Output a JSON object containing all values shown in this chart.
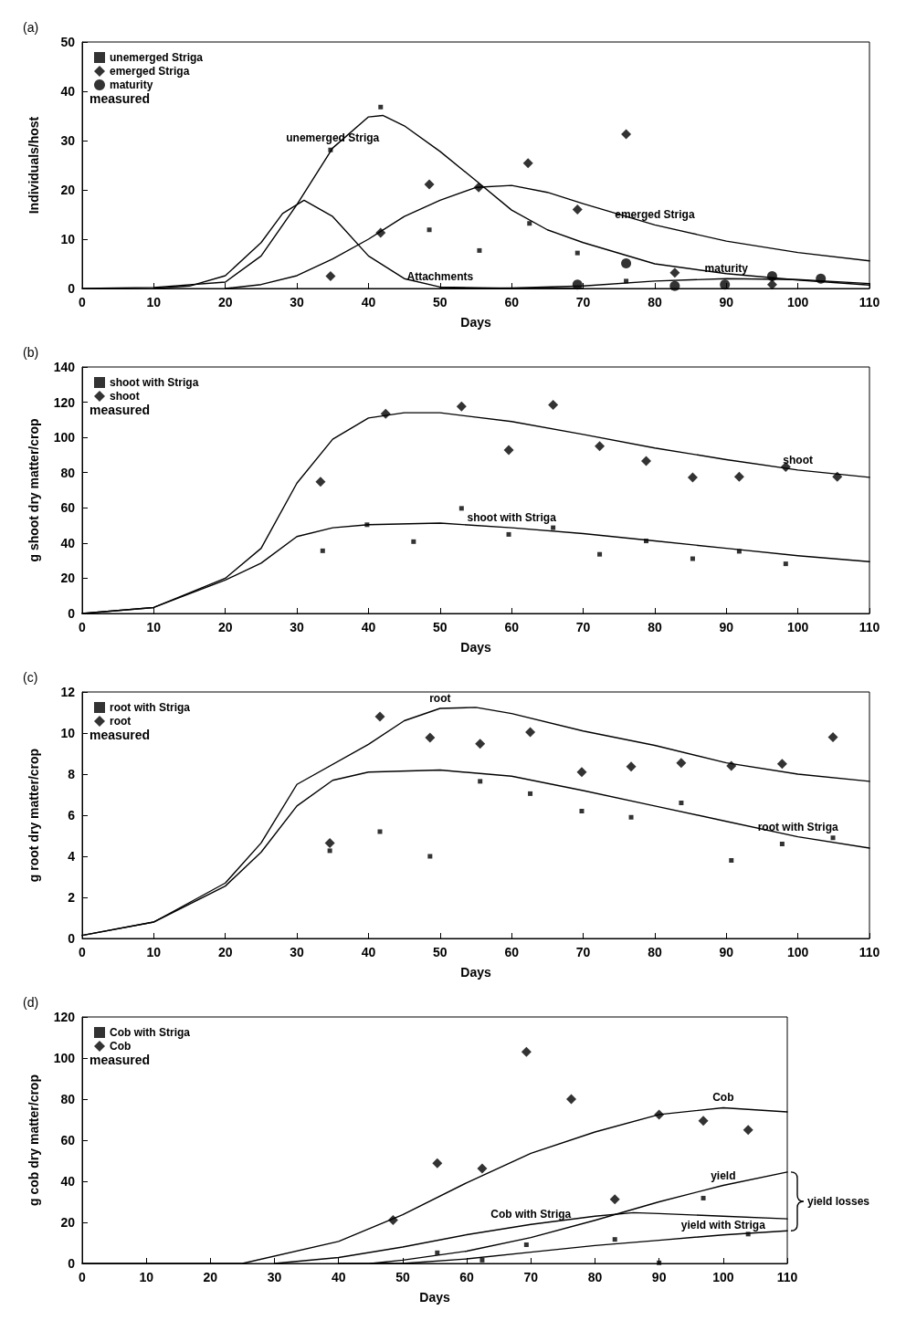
{
  "chart_data": [
    {
      "type": "line",
      "title": "(a)",
      "xlabel": "Days",
      "ylabel": "Individuals/host",
      "xlim": [
        0,
        110
      ],
      "xticks": [
        0,
        10,
        20,
        30,
        40,
        50,
        60,
        70,
        80,
        90,
        100,
        110
      ],
      "ylim": [
        0,
        50
      ],
      "yticks": [
        0,
        10,
        20,
        30,
        40,
        50
      ],
      "grid": false,
      "legend": "top left",
      "legend_title": "measured",
      "series": [
        {
          "color": "#000000",
          "marker": "none",
          "x": [
            0,
            10,
            20,
            25,
            30,
            35,
            40,
            42,
            45,
            50,
            55,
            60,
            65,
            70,
            80,
            90,
            100,
            110
          ],
          "values": [
            0,
            0.2,
            1.3,
            6.6,
            17,
            28.5,
            34.8,
            35.1,
            33,
            27.8,
            21.9,
            15.9,
            11.9,
            9.3,
            5,
            3,
            1.7,
            0.7
          ]
        },
        {
          "color": "#000000",
          "marker": "none",
          "x": [
            20,
            25,
            30,
            35,
            40,
            45,
            50,
            55,
            60,
            65,
            70,
            80,
            90,
            100,
            110
          ],
          "values": [
            0,
            0.8,
            2.6,
            6,
            10,
            14.6,
            17.9,
            20.5,
            20.9,
            19.5,
            17.2,
            12.9,
            9.6,
            7.3,
            5.6
          ]
        },
        {
          "color": "#000000",
          "marker": "none",
          "x": [
            10,
            15,
            20,
            25,
            28,
            31,
            35,
            40,
            45,
            50,
            60,
            70
          ],
          "values": [
            0,
            0.5,
            2.6,
            9.3,
            15.2,
            17.9,
            14.6,
            6.6,
            2,
            0.3,
            0,
            0
          ]
        },
        {
          "color": "#000000",
          "marker": "none",
          "x": [
            50,
            60,
            70,
            80,
            90,
            100,
            110
          ],
          "values": [
            0,
            0.1,
            0.5,
            1.5,
            2,
            1.8,
            1
          ]
        },
        {
          "type": "scatter",
          "name": "unemerged Striga",
          "color": "#000000",
          "marker": "square",
          "x": [
            34.7,
            41.7,
            48.5,
            55.5,
            62.5,
            69.2,
            76
          ],
          "values": [
            28.1,
            36.8,
            11.9,
            7.7,
            13.2,
            7.2,
            1.5
          ]
        },
        {
          "type": "scatter",
          "name": "emerged Striga",
          "color": "#000000",
          "marker": "diamond",
          "x": [
            34.7,
            41.7,
            48.5,
            55.4,
            62.3,
            69.2,
            76,
            82.8,
            96.4
          ],
          "values": [
            2.5,
            11.3,
            21.1,
            20.5,
            25.4,
            16,
            31.3,
            3.2,
            0.8
          ]
        },
        {
          "type": "scatter",
          "name": "maturity",
          "color": "#000000",
          "marker": "circle",
          "x": [
            69.2,
            76,
            82.8,
            89.8,
            96.4,
            103.2
          ],
          "values": [
            0.8,
            5.1,
            0.5,
            0.8,
            2.5,
            2
          ]
        }
      ],
      "annotations": [
        {
          "text": "unemerged Striga",
          "x": 35,
          "y": 28.5
        },
        {
          "text": "emerged Striga",
          "x": 80,
          "y": 12.9
        },
        {
          "text": "maturity",
          "x": 90,
          "y": 2
        },
        {
          "text": "Attachments",
          "x": 50,
          "y": 0.3
        }
      ]
    },
    {
      "type": "line",
      "title": "(b)",
      "xlabel": "Days",
      "ylabel": "g shoot dry matter/crop",
      "xlim": [
        0,
        110
      ],
      "xticks": [
        0,
        10,
        20,
        30,
        40,
        50,
        60,
        70,
        80,
        90,
        100,
        110
      ],
      "ylim": [
        0,
        140
      ],
      "yticks": [
        0,
        20,
        40,
        60,
        80,
        100,
        120,
        140
      ],
      "grid": false,
      "legend": "top left",
      "legend_title": "measured",
      "series": [
        {
          "color": "#000000",
          "marker": "none",
          "x": [
            0,
            10,
            20,
            25,
            30,
            35,
            40,
            45,
            50,
            60,
            70,
            80,
            90,
            100,
            110
          ],
          "values": [
            0,
            3.4,
            20,
            37,
            74,
            99,
            111,
            114,
            114,
            109,
            101.7,
            94,
            87.4,
            81.5,
            77.3
          ]
        },
        {
          "color": "#000000",
          "marker": "none",
          "x": [
            0,
            10,
            20,
            25,
            30,
            35,
            40,
            50,
            60,
            70,
            80,
            90,
            100,
            110
          ],
          "values": [
            0,
            3.4,
            19,
            28.6,
            43.7,
            48.7,
            50.4,
            51.3,
            48.7,
            45.4,
            41.2,
            37,
            32.8,
            29.4
          ]
        },
        {
          "type": "scatter",
          "name": "shoot with Striga",
          "color": "#000000",
          "marker": "square",
          "x": [
            33.6,
            39.8,
            46.3,
            53,
            59.6,
            65.8,
            72.3,
            78.8,
            85.3,
            91.8,
            98.3
          ],
          "values": [
            35.6,
            50.4,
            40.8,
            59.7,
            44.9,
            48.7,
            33.6,
            41.2,
            31.1,
            35.3,
            28.2
          ]
        },
        {
          "type": "scatter",
          "name": "shoot",
          "color": "#000000",
          "marker": "diamond",
          "x": [
            33.3,
            42.4,
            53,
            59.6,
            65.8,
            72.3,
            78.8,
            85.3,
            91.8,
            98.3,
            105.5
          ],
          "values": [
            74.8,
            113.4,
            117.6,
            92.8,
            118.5,
            95,
            86.6,
            77.3,
            77.6,
            83.2,
            77.6
          ]
        }
      ],
      "annotations": [
        {
          "text": "shoot",
          "x": 100,
          "y": 81.5
        },
        {
          "text": "shoot with Striga",
          "x": 60,
          "y": 48.7
        }
      ]
    },
    {
      "type": "line",
      "title": "(c)",
      "xlabel": "Days",
      "ylabel": "g root dry matter/crop",
      "xlim": [
        0,
        110
      ],
      "xticks": [
        0,
        10,
        20,
        30,
        40,
        50,
        60,
        70,
        80,
        90,
        100,
        110
      ],
      "ylim": [
        0,
        12
      ],
      "yticks": [
        0,
        2,
        4,
        6,
        8,
        10,
        12
      ],
      "grid": false,
      "legend": "top left",
      "legend_title": "measured",
      "series": [
        {
          "color": "#000000",
          "marker": "none",
          "x": [
            0,
            10,
            20,
            25,
            30,
            40,
            45,
            50,
            55,
            60,
            70,
            80,
            90,
            100,
            110
          ],
          "values": [
            0.15,
            0.8,
            2.7,
            4.65,
            7.5,
            9.45,
            10.6,
            11.2,
            11.25,
            10.95,
            10.1,
            9.4,
            8.55,
            8,
            7.65
          ]
        },
        {
          "color": "#000000",
          "marker": "none",
          "x": [
            0,
            10,
            20,
            25,
            30,
            35,
            40,
            50,
            60,
            70,
            80,
            90,
            100,
            110
          ],
          "values": [
            0.15,
            0.8,
            2.55,
            4.2,
            6.45,
            7.7,
            8.1,
            8.2,
            7.9,
            7.2,
            6.45,
            5.7,
            4.95,
            4.4
          ]
        },
        {
          "type": "scatter",
          "name": "root with Striga",
          "color": "#000000",
          "marker": "square",
          "x": [
            34.6,
            41.6,
            48.6,
            55.6,
            62.6,
            69.8,
            76.7,
            83.7,
            90.7,
            97.8,
            104.9
          ],
          "values": [
            4.27,
            5.2,
            4,
            7.65,
            7.05,
            6.2,
            5.9,
            6.6,
            3.8,
            4.6,
            4.9
          ]
        },
        {
          "type": "scatter",
          "name": "root",
          "color": "#000000",
          "marker": "diamond",
          "x": [
            34.6,
            41.6,
            48.6,
            55.6,
            62.6,
            69.8,
            76.7,
            83.7,
            90.7,
            97.8,
            104.9
          ],
          "values": [
            4.65,
            10.8,
            9.78,
            9.48,
            10.05,
            8.1,
            8.37,
            8.55,
            8.4,
            8.5,
            9.8
          ]
        }
      ],
      "annotations": [
        {
          "text": "root",
          "x": 50,
          "y": 11.2
        },
        {
          "text": "root with Striga",
          "x": 100,
          "y": 4.95
        }
      ]
    },
    {
      "type": "line",
      "title": "(d)",
      "xlabel": "Days",
      "ylabel": "g cob dry matter/crop",
      "xlim": [
        0,
        110
      ],
      "xticks": [
        0,
        10,
        20,
        30,
        40,
        50,
        60,
        70,
        80,
        90,
        100,
        110
      ],
      "ylim": [
        0,
        120
      ],
      "yticks": [
        0,
        20,
        40,
        60,
        80,
        100,
        120
      ],
      "grid": false,
      "legend": "top left",
      "legend_title": "measured",
      "series": [
        {
          "color": "#000000",
          "marker": "none",
          "x": [
            0,
            25,
            40,
            50,
            60,
            70,
            80,
            90,
            100,
            110
          ],
          "values": [
            0,
            0,
            10.7,
            23.7,
            39.3,
            53.6,
            64,
            72.5,
            75.8,
            73.8
          ]
        },
        {
          "color": "#000000",
          "marker": "none",
          "x": [
            40,
            45,
            50,
            60,
            70,
            80,
            90,
            100,
            110
          ],
          "values": [
            0,
            0,
            1.6,
            6,
            12.6,
            21,
            30,
            38,
            44.5
          ]
        },
        {
          "color": "#000000",
          "marker": "none",
          "x": [
            30,
            40,
            50,
            60,
            70,
            80,
            86,
            90,
            100,
            110
          ],
          "values": [
            0,
            2.9,
            8,
            14,
            19,
            23,
            24.7,
            24.3,
            23,
            21.7
          ]
        },
        {
          "color": "#000000",
          "marker": "none",
          "x": [
            45,
            50,
            60,
            70,
            80,
            90,
            100,
            110
          ],
          "values": [
            0,
            0,
            2.2,
            5.5,
            8.7,
            11.3,
            13.9,
            15.9
          ]
        },
        {
          "type": "scatter",
          "name": "Cob with Striga",
          "color": "#000000",
          "marker": "square",
          "x": [
            55.4,
            62.4,
            69.3,
            83.1,
            90,
            96.9,
            103.9
          ],
          "values": [
            5.2,
            1.6,
            9.1,
            11.7,
            0.3,
            31.8,
            14.3
          ]
        },
        {
          "type": "scatter",
          "name": "Cob",
          "color": "#000000",
          "marker": "diamond",
          "x": [
            48.5,
            55.4,
            62.4,
            69.3,
            76.3,
            83.1,
            90,
            96.9,
            103.9
          ],
          "values": [
            21.1,
            48.8,
            46.2,
            103,
            80,
            31.2,
            72.5,
            69.5,
            65
          ]
        }
      ],
      "annotations": [
        {
          "text": "Cob",
          "x": 100,
          "y": 75.8
        },
        {
          "text": "yield",
          "x": 100,
          "y": 38
        },
        {
          "text": "Cob with Striga",
          "x": 70,
          "y": 19
        },
        {
          "text": "yield with Striga",
          "x": 100,
          "y": 13.9
        },
        {
          "text": "yield losses",
          "x": 110,
          "y": 44.5
        }
      ]
    }
  ]
}
